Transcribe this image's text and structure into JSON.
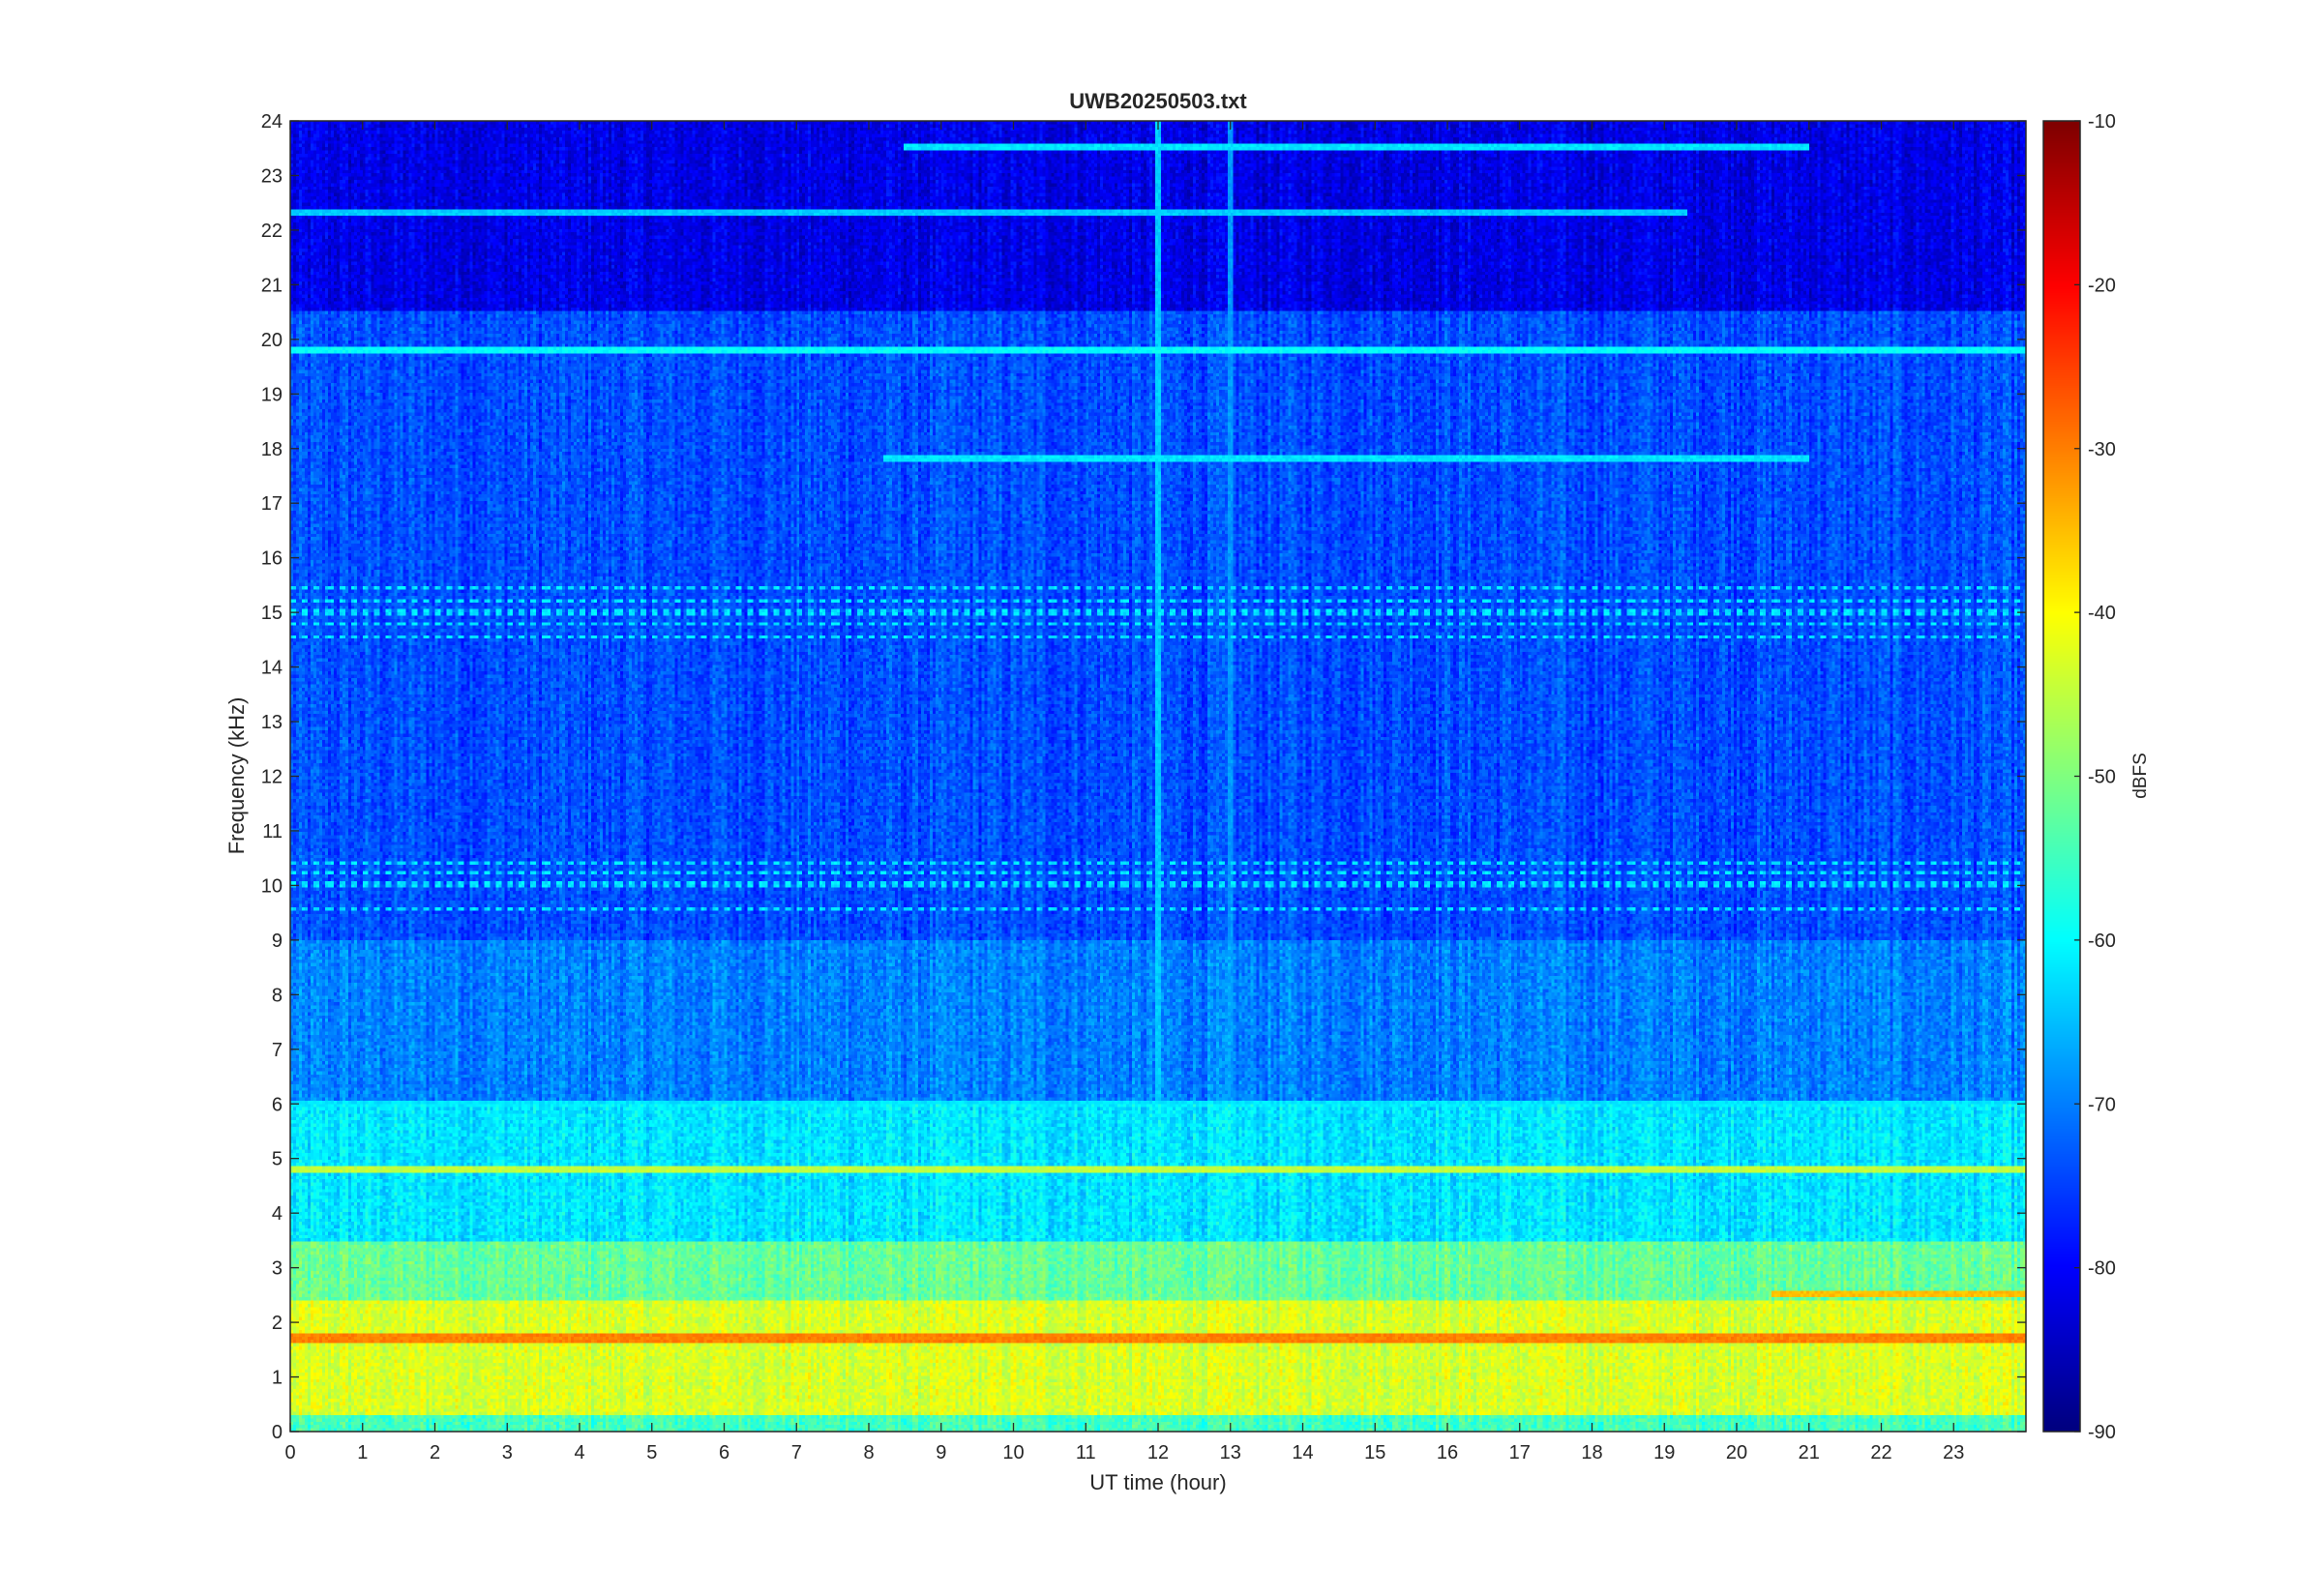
{
  "chart_data": {
    "type": "heatmap",
    "title": "UWB20250503.txt",
    "xlabel": "UT time (hour)",
    "ylabel": "Frequency (kHz)",
    "colorbar_label": "dBFS",
    "colormap": "jet",
    "xlim": [
      0,
      24
    ],
    "ylim": [
      0,
      24
    ],
    "clim": [
      -90,
      -10
    ],
    "x_ticks": [
      0,
      1,
      2,
      3,
      4,
      5,
      6,
      7,
      8,
      9,
      10,
      11,
      12,
      13,
      14,
      15,
      16,
      17,
      18,
      19,
      20,
      21,
      22,
      23
    ],
    "y_ticks": [
      0,
      1,
      2,
      3,
      4,
      5,
      6,
      7,
      8,
      9,
      10,
      11,
      12,
      13,
      14,
      15,
      16,
      17,
      18,
      19,
      20,
      21,
      22,
      23,
      24
    ],
    "colorbar_ticks": [
      -10,
      -20,
      -30,
      -40,
      -50,
      -60,
      -70,
      -80,
      -90
    ],
    "background_level_by_band": [
      {
        "freq_range_khz": [
          0,
          0.3
        ],
        "level_dbfs": -55
      },
      {
        "freq_range_khz": [
          0.3,
          2.4
        ],
        "level_dbfs": -43
      },
      {
        "freq_range_khz": [
          2.4,
          3.5
        ],
        "level_dbfs": -52
      },
      {
        "freq_range_khz": [
          3.5,
          6
        ],
        "level_dbfs": -62
      },
      {
        "freq_range_khz": [
          6,
          9
        ],
        "level_dbfs": -70
      },
      {
        "freq_range_khz": [
          9,
          20.5
        ],
        "level_dbfs": -74
      },
      {
        "freq_range_khz": [
          20.5,
          24
        ],
        "level_dbfs": -82
      }
    ],
    "persistent_lines": [
      {
        "freq_khz": 19.8,
        "level_dbfs": -60,
        "t_range": [
          0,
          24
        ]
      },
      {
        "freq_khz": 17.8,
        "level_dbfs": -62,
        "t_range": [
          8.2,
          21
        ]
      },
      {
        "freq_khz": 23.5,
        "level_dbfs": -62,
        "t_range": [
          8.5,
          21
        ]
      },
      {
        "freq_khz": 22.3,
        "level_dbfs": -64,
        "t_range": [
          0,
          19.3
        ]
      },
      {
        "freq_khz": 6.0,
        "level_dbfs": -62,
        "t_range": [
          0,
          24
        ]
      },
      {
        "freq_khz": 4.8,
        "level_dbfs": -45,
        "t_range": [
          0,
          24
        ]
      },
      {
        "freq_khz": 2.5,
        "level_dbfs": -35,
        "t_range": [
          20.5,
          24
        ]
      },
      {
        "freq_khz": 1.7,
        "level_dbfs": -30,
        "t_range": [
          0,
          24
        ]
      }
    ],
    "pulsed_bands": [
      {
        "freq_khz": 15.0,
        "level_dbfs": -62
      },
      {
        "freq_khz": 10.0,
        "level_dbfs": -62
      }
    ],
    "vertical_events": [
      {
        "time_hour": 12.0,
        "level_dbfs": -64
      },
      {
        "time_hour": 13.0,
        "level_dbfs": -68
      }
    ]
  }
}
